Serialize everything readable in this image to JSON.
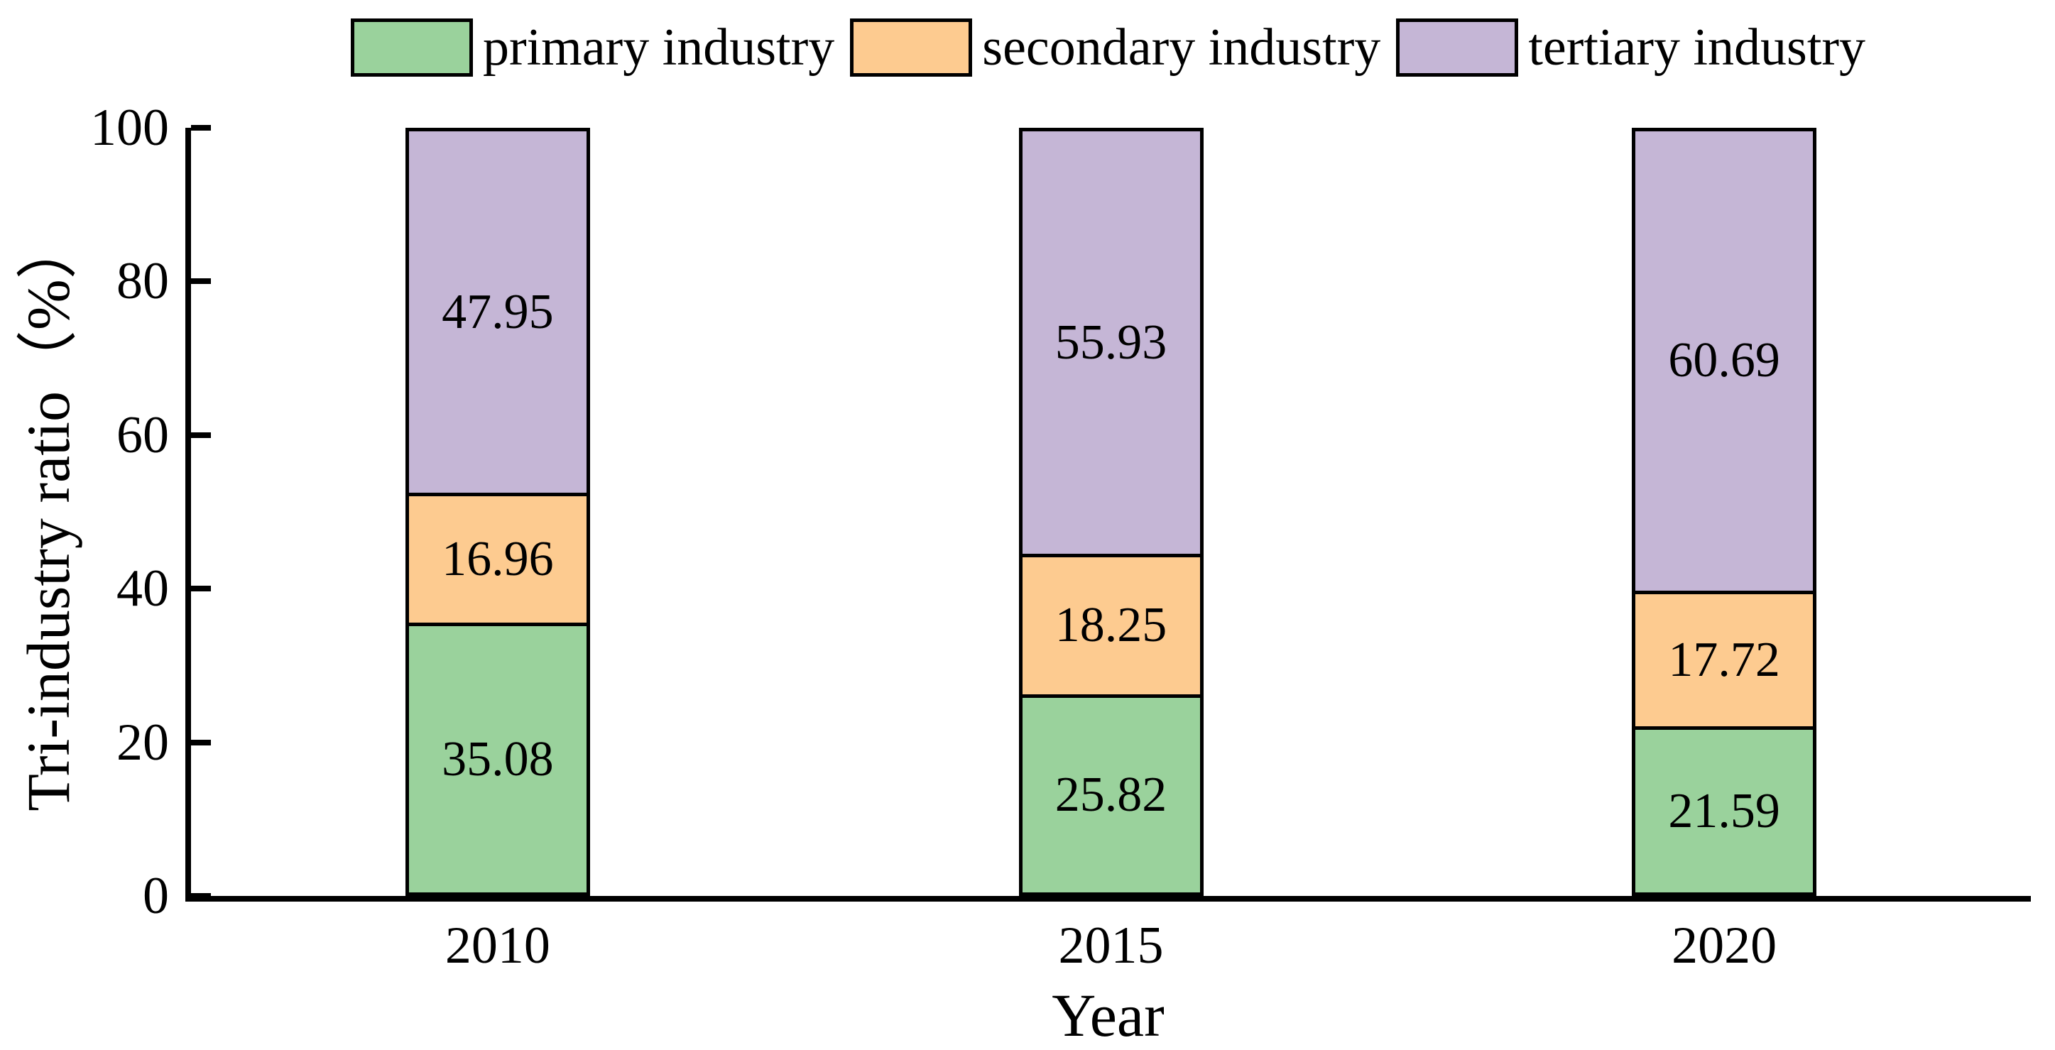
{
  "chart_data": {
    "type": "bar",
    "stacked": true,
    "title": "",
    "xlabel": "Year",
    "ylabel": "Tri-industry ratio（%）",
    "categories": [
      "2010",
      "2015",
      "2020"
    ],
    "series": [
      {
        "name": "primary industry",
        "color": "#9AD29C",
        "values": [
          35.08,
          25.82,
          21.59
        ]
      },
      {
        "name": "secondary industry",
        "color": "#FDCB90",
        "values": [
          16.96,
          18.25,
          17.72
        ]
      },
      {
        "name": "tertiary industry",
        "color": "#C5B6D6",
        "values": [
          47.95,
          55.93,
          60.69
        ]
      }
    ],
    "ylim": [
      0,
      100
    ],
    "yticks": [
      0,
      20,
      40,
      60,
      80,
      100
    ],
    "legend_position": "top-center",
    "grid": false,
    "bar_edge_color": "#000000",
    "axis_color": "#000000",
    "tick_direction": "in"
  }
}
